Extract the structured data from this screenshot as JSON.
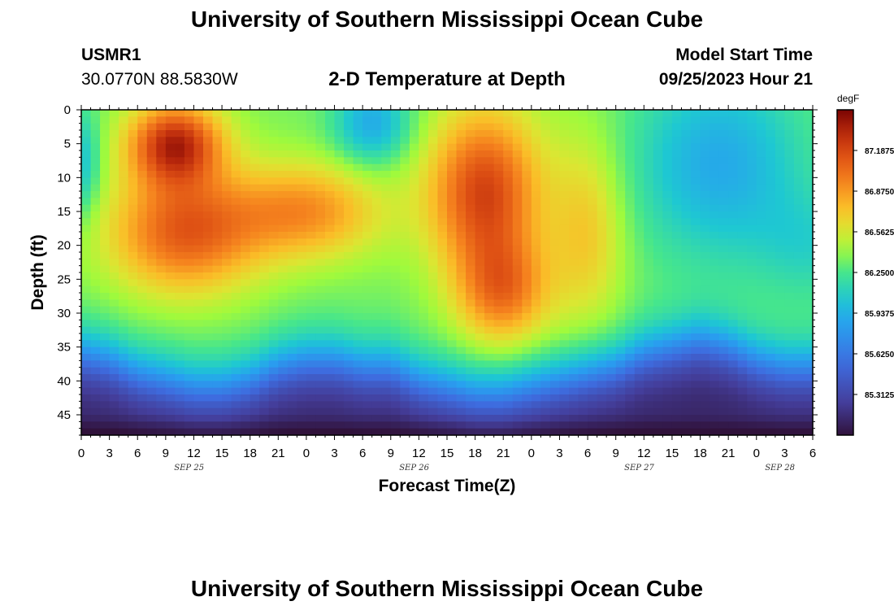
{
  "title": "University of Southern Mississippi Ocean Cube",
  "station": "USMR1",
  "coordinates": "30.0770N  88.5830W",
  "subtitle": "2-D Temperature at Depth",
  "model_start_label": "Model Start Time",
  "model_start_value": "09/25/2023 Hour 21",
  "footer_title": "University of Southern Mississippi Ocean Cube",
  "chart_data": {
    "type": "heatmap",
    "title": "2-D Temperature at Depth",
    "xlabel": "Forecast Time(Z)",
    "ylabel": "Depth (ft)",
    "x_hours": [
      0,
      78
    ],
    "xlim": [
      0,
      78
    ],
    "ylim": [
      0,
      48
    ],
    "x_tick_labels": [
      "0",
      "3",
      "6",
      "9",
      "12",
      "15",
      "18",
      "21",
      "0",
      "3",
      "6",
      "9",
      "12",
      "15",
      "18",
      "21",
      "0",
      "3",
      "6",
      "9",
      "12",
      "15",
      "18",
      "21",
      "0",
      "3",
      "6"
    ],
    "y_ticks": [
      0,
      5,
      10,
      15,
      20,
      25,
      30,
      35,
      40,
      45
    ],
    "date_labels": [
      {
        "label": "SEP 25",
        "hour": 11.5
      },
      {
        "label": "SEP 26",
        "hour": 35.5
      },
      {
        "label": "SEP 27",
        "hour": 59.5
      },
      {
        "label": "SEP 28",
        "hour": 74.5
      }
    ],
    "colorbar": {
      "unit": "degF",
      "min": 85.0,
      "max": 87.5,
      "ticks": [
        "87.18750",
        "86.87500",
        "86.56250",
        "86.25000",
        "85.93750",
        "85.62500",
        "85.31250"
      ],
      "tick_values": [
        87.1875,
        86.875,
        86.5625,
        86.25,
        85.9375,
        85.625,
        85.3125
      ]
    },
    "surface_profile_hours": [
      0,
      3,
      6,
      9,
      12,
      15,
      18,
      21,
      24,
      27,
      30,
      33,
      36,
      39,
      42,
      45,
      48,
      51,
      54,
      57,
      60,
      63,
      66,
      69,
      72,
      75,
      78
    ],
    "bottom_layer_depth_ft": [
      36,
      37,
      39,
      40,
      41,
      41,
      40,
      38,
      37,
      37,
      38,
      38,
      40,
      41,
      42,
      42,
      41,
      40,
      39,
      38,
      36,
      35,
      34,
      35,
      37,
      38,
      38
    ]
  }
}
